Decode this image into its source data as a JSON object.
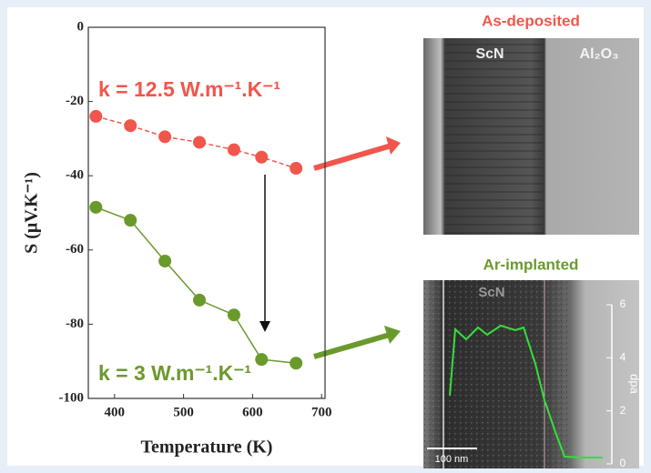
{
  "chart_data": {
    "type": "line",
    "x_label": "Temperature (K)",
    "y_label": "S (μV.K⁻¹)",
    "x": [
      373,
      423,
      473,
      523,
      573,
      613,
      663
    ],
    "series": [
      {
        "color": "#f0564c",
        "values": [
          -24,
          -26.5,
          -29.5,
          -31,
          -33,
          -35,
          -38
        ]
      },
      {
        "color": "#6b9a2c",
        "values": [
          -48.5,
          -52,
          -63,
          -73.5,
          -77.5,
          -89.5,
          -90.5
        ]
      }
    ],
    "annotations": [
      "k = 12.5 W.m⁻¹.K⁻¹",
      "k = 3 W.m⁻¹.K⁻¹"
    ],
    "xlim": [
      362,
      705
    ],
    "xticks": [
      400,
      500,
      600,
      700
    ],
    "ylim": [
      -100,
      0
    ],
    "yticks": [
      0,
      -20,
      -40,
      -60,
      -80,
      -100
    ]
  },
  "panels": {
    "top": {
      "title": "As-deposited",
      "left_label": "ScN",
      "right_label": "Al₂O₃"
    },
    "bottom": {
      "title": "Ar-implanted",
      "left_label": "ScN",
      "scale_bar": "100 nm",
      "axis_label": "dpa",
      "axis_ticks": [
        0,
        2,
        4,
        6
      ]
    }
  }
}
